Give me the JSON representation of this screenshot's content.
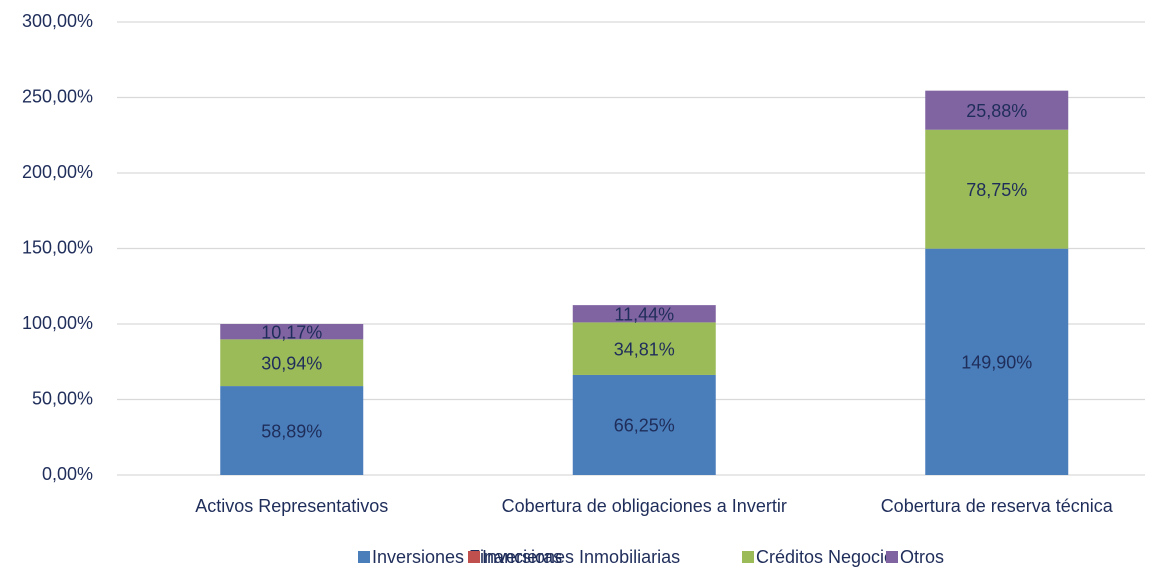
{
  "chart_data": {
    "type": "stacked_bar",
    "categories": [
      "Activos Representativos",
      "Cobertura de obligaciones a Invertir",
      "Cobertura de reserva técnica"
    ],
    "series": [
      {
        "name": "Inversiones Financieras",
        "color": "#4a7ebb",
        "values": [
          58.89,
          66.25,
          149.9
        ],
        "value_labels": [
          "58,89%",
          "66,25%",
          "149,90%"
        ]
      },
      {
        "name": "Inversiones Inmobiliarias",
        "color": "#c0504d",
        "values": [
          0,
          0,
          0
        ]
      },
      {
        "name": "Créditos Negocio",
        "color": "#9bbb59",
        "values": [
          30.94,
          34.81,
          78.75
        ],
        "value_labels": [
          "30,94%",
          "34,81%",
          "78,75%"
        ]
      },
      {
        "name": "Otros",
        "color": "#8064a2",
        "values": [
          10.17,
          11.44,
          25.88
        ],
        "value_labels": [
          "10,17%",
          "11,44%",
          "25,88%"
        ]
      }
    ],
    "ylim": [
      0,
      300
    ],
    "yticks": [
      {
        "value": 0,
        "label": "0,00%"
      },
      {
        "value": 50,
        "label": "50,00%"
      },
      {
        "value": 100,
        "label": "100,00%"
      },
      {
        "value": 150,
        "label": "150,00%"
      },
      {
        "value": 200,
        "label": "200,00%"
      },
      {
        "value": 250,
        "label": "250,00%"
      },
      {
        "value": 300,
        "label": "300,00%"
      }
    ],
    "grid": true,
    "legend": "bottom"
  }
}
